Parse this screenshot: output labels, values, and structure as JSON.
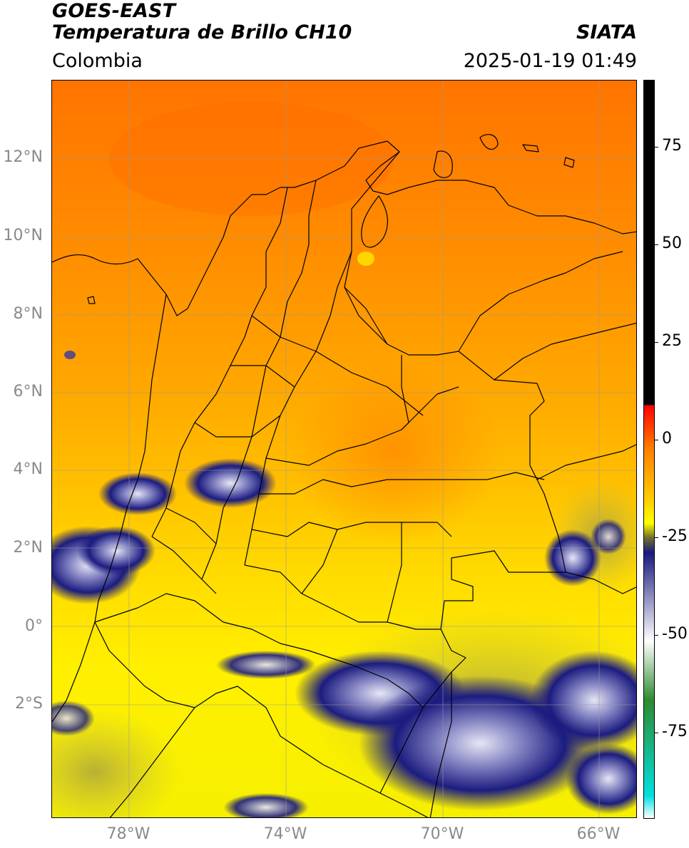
{
  "header": {
    "title_line1": "GOES-EAST",
    "title_line2": "Temperatura de Brillo CH10",
    "brand": "SIATA",
    "region": "Colombia",
    "timestamp": "2025-01-19 01:49"
  },
  "map": {
    "lat_labels": [
      "12°N",
      "10°N",
      "8°N",
      "6°N",
      "4°N",
      "2°N",
      "0°",
      "2°S"
    ],
    "lon_labels": [
      "78°W",
      "74°W",
      "70°W",
      "66°W"
    ],
    "colors": {
      "warm": "#ff7a00",
      "mid": "#ffb300",
      "cool": "#ffee00",
      "olive": "#b9b13a",
      "cloud_deep": "#1a1a7a",
      "cloud_light": "#c8c8e6",
      "border": "#000000",
      "grid": "#9a9a9a"
    }
  },
  "colorbar": {
    "ticks": [
      "75",
      "50",
      "25",
      "0",
      "-25",
      "-50",
      "-75"
    ],
    "stops": [
      "#000000",
      "#000000",
      "#ff0000",
      "#ff8000",
      "#ffd000",
      "#ffff00",
      "#6f6f2a",
      "#1a1a80",
      "#ffffff",
      "#2e8b2e",
      "#00e0e0",
      "#ffffff"
    ]
  }
}
